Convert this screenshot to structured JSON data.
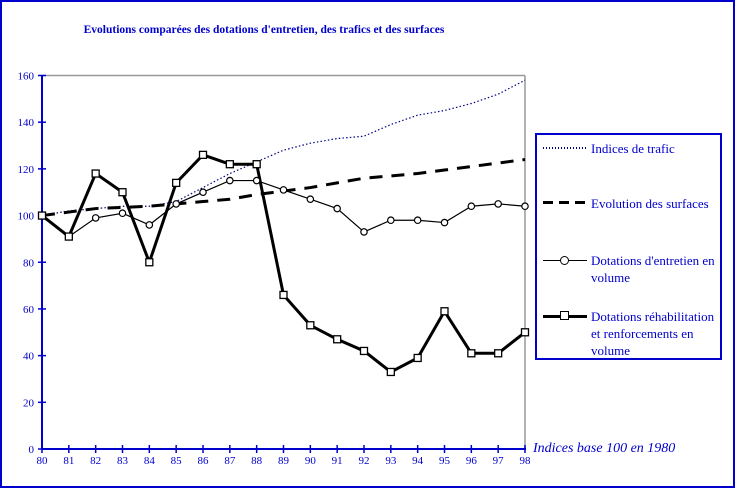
{
  "title": "Evolutions comparées des dotations d'entretien, des trafics et des surfaces",
  "footnote": "Indices base 100 en 1980",
  "colors": {
    "accent_blue": "#0000CD",
    "trafic_line": "#000080",
    "data_line_black": "#000000",
    "plot_border_gray": "#999999"
  },
  "legend": {
    "entries": [
      {
        "lines": [
          "Indices de trafic"
        ]
      },
      {
        "lines": [
          "Evolution des surfaces"
        ]
      },
      {
        "lines": [
          "Dotations d'entretien en",
          "volume"
        ]
      },
      {
        "lines": [
          "Dotations réhabilitation",
          "et renforcements en",
          "volume"
        ]
      }
    ]
  },
  "chart_data": {
    "type": "line",
    "title": "Evolutions comparées des dotations d'entretien, des trafics et des surfaces",
    "xlabel": "",
    "ylabel": "",
    "x_labels": [
      "80",
      "81",
      "82",
      "83",
      "84",
      "85",
      "86",
      "87",
      "88",
      "89",
      "90",
      "91",
      "92",
      "93",
      "94",
      "95",
      "96",
      "97",
      "98"
    ],
    "ylim": [
      0,
      160
    ],
    "yticks": [
      0,
      20,
      40,
      60,
      80,
      100,
      120,
      140,
      160
    ],
    "grid": false,
    "legend_position": "right",
    "note": "Indices base 100 en 1980",
    "series": [
      {
        "name": "Indices de trafic",
        "style": "dotted-thin",
        "color": "#000080",
        "marker": "none",
        "values": [
          100,
          102,
          103,
          104,
          104,
          106,
          112,
          118,
          123,
          128,
          131,
          133,
          134,
          139,
          143,
          145,
          148,
          152,
          158
        ]
      },
      {
        "name": "Evolution des surfaces",
        "style": "dashed-thick",
        "color": "#000000",
        "marker": "none",
        "values": [
          100,
          101.5,
          103,
          103.5,
          104,
          105,
          106,
          107,
          109,
          110.5,
          112,
          114,
          116,
          117,
          118,
          119.5,
          121,
          122.5,
          124
        ]
      },
      {
        "name": "Dotations d'entretien en volume",
        "style": "solid-thin",
        "color": "#000000",
        "marker": "circle",
        "values": [
          100,
          91,
          99,
          101,
          96,
          105,
          110,
          115,
          115,
          111,
          107,
          103,
          93,
          98,
          98,
          97,
          104,
          105,
          104
        ]
      },
      {
        "name": "Dotations réhabilitation et renforcements en volume",
        "style": "solid-thick",
        "color": "#000000",
        "marker": "square",
        "values": [
          100,
          91,
          118,
          110,
          80,
          114,
          126,
          122,
          122,
          66,
          53,
          47,
          42,
          33,
          39,
          59,
          41,
          41,
          50
        ]
      }
    ]
  }
}
